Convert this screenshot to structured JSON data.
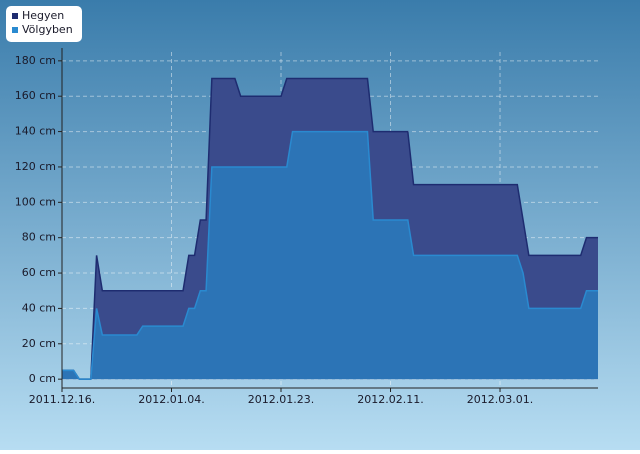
{
  "chart_data": {
    "type": "area",
    "x": [
      "2011-12-16",
      "2011-12-18",
      "2011-12-19",
      "2011-12-21",
      "2011-12-22",
      "2011-12-23",
      "2011-12-29",
      "2011-12-30",
      "2012-01-06",
      "2012-01-07",
      "2012-01-08",
      "2012-01-09",
      "2012-01-10",
      "2012-01-11",
      "2012-01-15",
      "2012-01-16",
      "2012-01-23",
      "2012-01-24",
      "2012-01-25",
      "2012-02-07",
      "2012-02-08",
      "2012-02-14",
      "2012-02-15",
      "2012-03-04",
      "2012-03-05",
      "2012-03-06",
      "2012-03-15",
      "2012-03-16",
      "2012-03-18"
    ],
    "series": [
      {
        "name": "Hegyen",
        "color": "#1e2c70",
        "fill": "#3a4b8c",
        "values": [
          5,
          5,
          0,
          0,
          70,
          50,
          50,
          50,
          50,
          70,
          70,
          90,
          90,
          170,
          170,
          160,
          160,
          170,
          170,
          170,
          140,
          140,
          110,
          110,
          90,
          70,
          70,
          80,
          80
        ]
      },
      {
        "name": "Völgyben",
        "color": "#2a8ad0",
        "fill": "#2c74b6",
        "values": [
          5,
          5,
          0,
          0,
          40,
          25,
          25,
          30,
          30,
          40,
          40,
          50,
          50,
          120,
          120,
          120,
          120,
          120,
          140,
          140,
          90,
          90,
          70,
          70,
          60,
          40,
          40,
          50,
          50
        ]
      }
    ],
    "xlim": [
      "2011-12-16",
      "2012-03-18"
    ],
    "xticks": [
      {
        "value": "2011-12-16",
        "label": "2011.12.16."
      },
      {
        "value": "2012-01-04",
        "label": "2012.01.04."
      },
      {
        "value": "2012-01-23",
        "label": "2012.01.23."
      },
      {
        "value": "2012-02-11",
        "label": "2012.02.11."
      },
      {
        "value": "2012-03-01",
        "label": "2012.03.01."
      }
    ],
    "ylim": [
      -5,
      185
    ],
    "yticks": [
      {
        "value": 0,
        "label": "0 cm"
      },
      {
        "value": 20,
        "label": "20 cm"
      },
      {
        "value": 40,
        "label": "40 cm"
      },
      {
        "value": 60,
        "label": "60 cm"
      },
      {
        "value": 80,
        "label": "80 cm"
      },
      {
        "value": 100,
        "label": "100 cm"
      },
      {
        "value": 120,
        "label": "120 cm"
      },
      {
        "value": 140,
        "label": "140 cm"
      },
      {
        "value": 160,
        "label": "160 cm"
      },
      {
        "value": 180,
        "label": "180 cm"
      }
    ],
    "grid": true,
    "legend": "top-left"
  }
}
